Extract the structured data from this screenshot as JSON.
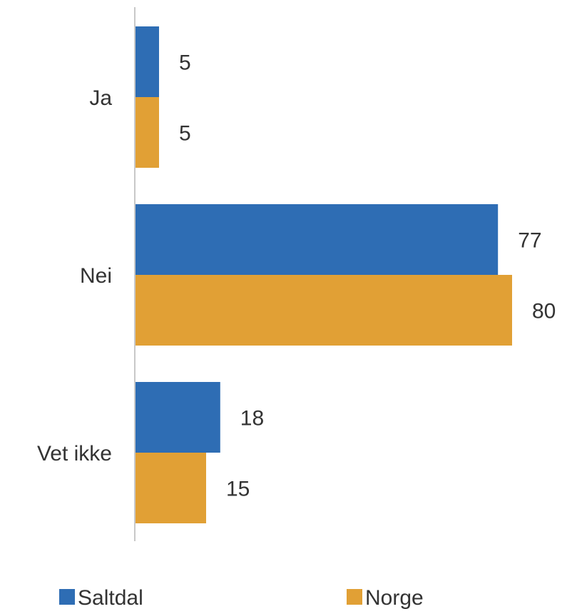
{
  "chart_data": {
    "type": "bar",
    "orientation": "horizontal",
    "categories": [
      "Ja",
      "Nei",
      "Vet ikke"
    ],
    "series": [
      {
        "name": "Saltdal",
        "values": [
          5,
          77,
          18
        ],
        "color": "#2e6db4"
      },
      {
        "name": "Norge",
        "values": [
          5,
          80,
          15
        ],
        "color": "#e1a035"
      }
    ],
    "xlim": [
      0,
      80
    ],
    "grid": false,
    "legend": "bottom",
    "data_labels": true
  }
}
